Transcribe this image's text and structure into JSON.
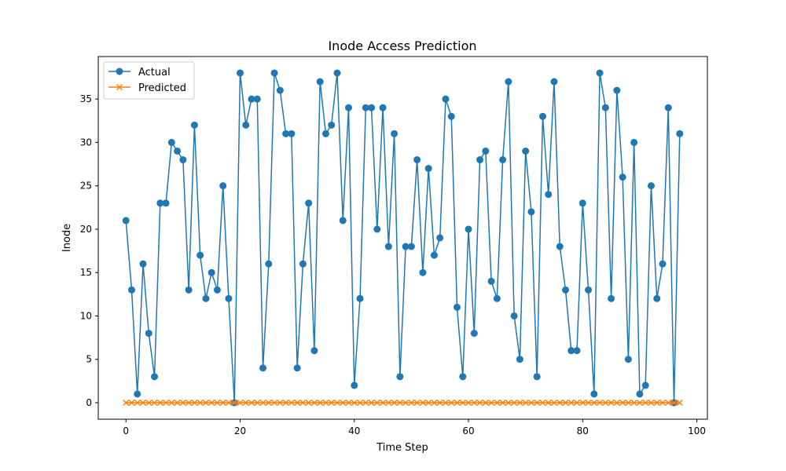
{
  "chart_data": {
    "type": "line",
    "title": "Inode Access Prediction",
    "xlabel": "Time Step",
    "ylabel": "Inode",
    "xlim": [
      -4.85,
      101.85
    ],
    "ylim": [
      -1.9,
      39.9
    ],
    "x_ticks": [
      0,
      20,
      40,
      60,
      80,
      100
    ],
    "y_ticks": [
      0,
      5,
      10,
      15,
      20,
      25,
      30,
      35
    ],
    "grid": false,
    "legend": "top-left",
    "x": [
      0,
      1,
      2,
      3,
      4,
      5,
      6,
      7,
      8,
      9,
      10,
      11,
      12,
      13,
      14,
      15,
      16,
      17,
      18,
      19,
      20,
      21,
      22,
      23,
      24,
      25,
      26,
      27,
      28,
      29,
      30,
      31,
      32,
      33,
      34,
      35,
      36,
      37,
      38,
      39,
      40,
      41,
      42,
      43,
      44,
      45,
      46,
      47,
      48,
      49,
      50,
      51,
      52,
      53,
      54,
      55,
      56,
      57,
      58,
      59,
      60,
      61,
      62,
      63,
      64,
      65,
      66,
      67,
      68,
      69,
      70,
      71,
      72,
      73,
      74,
      75,
      76,
      77,
      78,
      79,
      80,
      81,
      82,
      83,
      84,
      85,
      86,
      87,
      88,
      89,
      90,
      91,
      92,
      93,
      94,
      95,
      96,
      97
    ],
    "series": [
      {
        "name": "Actual",
        "color": "#1f77b4",
        "marker": "circle",
        "values": [
          21,
          13,
          1,
          16,
          8,
          3,
          23,
          23,
          30,
          29,
          28,
          13,
          32,
          17,
          12,
          15,
          13,
          25,
          12,
          0,
          38,
          32,
          35,
          35,
          4,
          16,
          38,
          36,
          31,
          31,
          4,
          16,
          23,
          6,
          37,
          31,
          32,
          38,
          21,
          34,
          2,
          12,
          34,
          34,
          20,
          34,
          18,
          31,
          3,
          18,
          18,
          28,
          15,
          27,
          17,
          19,
          35,
          33,
          11,
          3,
          20,
          8,
          28,
          29,
          14,
          12,
          28,
          37,
          10,
          5,
          29,
          22,
          3,
          33,
          24,
          37,
          18,
          13,
          6,
          6,
          23,
          13,
          1,
          38,
          34,
          12,
          36,
          26,
          5,
          30,
          1,
          2,
          25,
          12,
          16,
          34,
          0,
          31
        ]
      },
      {
        "name": "Predicted",
        "color": "#ff7f0e",
        "marker": "x",
        "values": [
          0,
          0,
          0,
          0,
          0,
          0,
          0,
          0,
          0,
          0,
          0,
          0,
          0,
          0,
          0,
          0,
          0,
          0,
          0,
          0,
          0,
          0,
          0,
          0,
          0,
          0,
          0,
          0,
          0,
          0,
          0,
          0,
          0,
          0,
          0,
          0,
          0,
          0,
          0,
          0,
          0,
          0,
          0,
          0,
          0,
          0,
          0,
          0,
          0,
          0,
          0,
          0,
          0,
          0,
          0,
          0,
          0,
          0,
          0,
          0,
          0,
          0,
          0,
          0,
          0,
          0,
          0,
          0,
          0,
          0,
          0,
          0,
          0,
          0,
          0,
          0,
          0,
          0,
          0,
          0,
          0,
          0,
          0,
          0,
          0,
          0,
          0,
          0,
          0,
          0,
          0,
          0,
          0,
          0,
          0,
          0,
          0,
          0
        ]
      }
    ]
  }
}
